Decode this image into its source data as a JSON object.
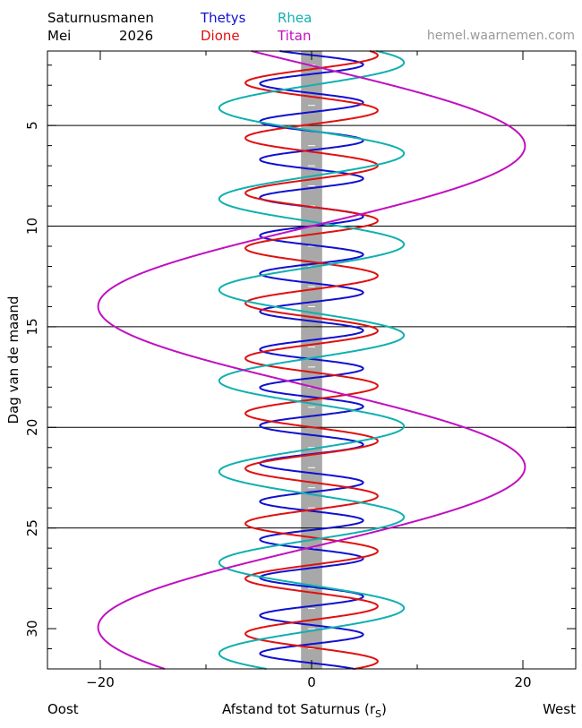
{
  "header": {
    "title": "Saturnusmanen",
    "month": "Mei",
    "year": "2026",
    "credit": "hemel.waarnemen.com"
  },
  "legend": [
    {
      "name": "Thetys",
      "color": "#1010d0"
    },
    {
      "name": "Dione",
      "color": "#e01010"
    },
    {
      "name": "Rhea",
      "color": "#10b0b0"
    },
    {
      "name": "Titan",
      "color": "#c010c0"
    }
  ],
  "footer": {
    "left": "Oost",
    "center": "Afstand tot Saturnus (r",
    "center_sub": "S",
    "center_end": ")",
    "right": "West"
  },
  "chart_data": {
    "type": "line",
    "ylabel": "Dag van de maand",
    "xlabel": "Afstand tot Saturnus (rS)",
    "xlim": [
      -25,
      25
    ],
    "ylim": [
      32,
      1.3
    ],
    "xticks": [
      -20,
      0,
      20
    ],
    "xtick_labels": [
      "−20",
      "0",
      "20"
    ],
    "yticks": [
      5,
      10,
      15,
      20,
      25,
      30
    ],
    "ytick_labels": [
      "5",
      "10",
      "15",
      "20",
      "25",
      "30"
    ],
    "gridlines_y": [
      5,
      10,
      15,
      20,
      25
    ],
    "saturn_band": {
      "x_min": -1,
      "x_max": 1,
      "color": "#a8a8a8"
    },
    "series": [
      {
        "name": "Thetys",
        "color": "#1010d0",
        "amplitude": 4.88,
        "period_days": 1.888,
        "zero_day": 1.5,
        "direction": 1
      },
      {
        "name": "Dione",
        "color": "#e01010",
        "amplitude": 6.26,
        "period_days": 2.737,
        "zero_day": 2.2,
        "direction": -1
      },
      {
        "name": "Rhea",
        "color": "#10b0b0",
        "amplitude": 8.74,
        "period_days": 4.518,
        "zero_day": 3.0,
        "direction": -1
      },
      {
        "name": "Titan",
        "color": "#c010c0",
        "amplitude": 20.2,
        "period_days": 15.95,
        "zero_day": 10.0,
        "direction": -1
      }
    ]
  }
}
